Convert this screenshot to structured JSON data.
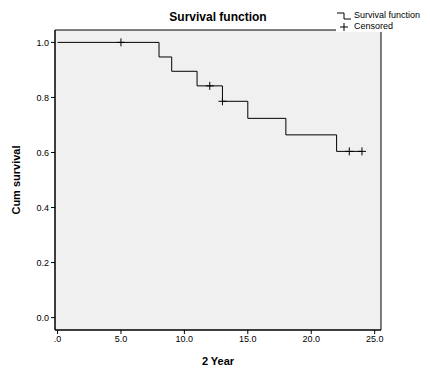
{
  "chart_data": {
    "type": "line",
    "title": "Survival function",
    "x_label": "2 Year",
    "y_label": "Cum survival",
    "xlim": [
      -0.2,
      25.5
    ],
    "ylim": [
      -0.045,
      1.045
    ],
    "xticks": [
      {
        "value": 0,
        "label": ".0"
      },
      {
        "value": 5,
        "label": "5.0"
      },
      {
        "value": 10,
        "label": "10.0"
      },
      {
        "value": 15,
        "label": "15.0"
      },
      {
        "value": 20,
        "label": "20.0"
      },
      {
        "value": 25,
        "label": "25.0"
      }
    ],
    "yticks": [
      {
        "value": 0,
        "label": "0.0"
      },
      {
        "value": 0.2,
        "label": "0.2"
      },
      {
        "value": 0.4,
        "label": "0.4"
      },
      {
        "value": 0.6,
        "label": "0.6"
      },
      {
        "value": 0.8,
        "label": "0.8"
      },
      {
        "value": 1,
        "label": "1.0"
      }
    ],
    "grid": false,
    "legend": "upper right",
    "series": [
      {
        "name": "Survival function",
        "type": "line",
        "line_style": "step",
        "color": "#000000",
        "x": [
          0,
          8,
          9,
          11,
          13,
          15,
          18,
          22,
          24
        ],
        "values": [
          1,
          0.947,
          0.895,
          0.842,
          0.786,
          0.724,
          0.664,
          0.604,
          0.604
        ]
      },
      {
        "name": "Censored",
        "type": "scatter",
        "marker": "plus",
        "color": "#000000",
        "x": [
          5,
          12,
          13,
          23,
          24
        ],
        "values": [
          1,
          0.842,
          0.786,
          0.604,
          0.604
        ]
      }
    ]
  }
}
